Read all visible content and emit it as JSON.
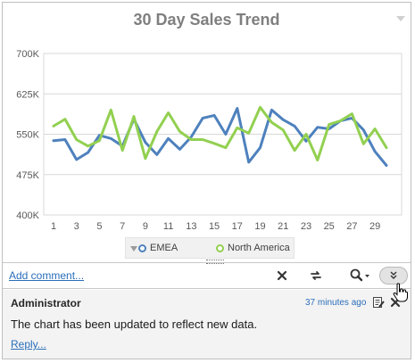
{
  "chart_data": {
    "type": "line",
    "title": "30 Day Sales Trend",
    "x": [
      1,
      2,
      3,
      4,
      5,
      6,
      7,
      8,
      9,
      10,
      11,
      12,
      13,
      14,
      15,
      16,
      17,
      18,
      19,
      20,
      21,
      22,
      23,
      24,
      25,
      26,
      27,
      28,
      29,
      30
    ],
    "x_tick_labels": [
      "1",
      "3",
      "5",
      "7",
      "9",
      "11",
      "13",
      "15",
      "17",
      "19",
      "21",
      "23",
      "25",
      "27",
      "29"
    ],
    "y_tick_labels": [
      "700K",
      "625K",
      "550K",
      "475K",
      "400K"
    ],
    "ylim": [
      400000,
      700000
    ],
    "grid": true,
    "legend_position": "bottom",
    "series": [
      {
        "name": "EMEA",
        "color": "#4e81bd",
        "values": [
          538000,
          540000,
          503000,
          516000,
          548000,
          542000,
          528000,
          578000,
          535000,
          512000,
          542000,
          522000,
          545000,
          580000,
          585000,
          550000,
          598000,
          498000,
          525000,
          595000,
          577000,
          565000,
          537000,
          563000,
          560000,
          575000,
          580000,
          558000,
          518000,
          492000
        ]
      },
      {
        "name": "North America",
        "color": "#92d050",
        "values": [
          565000,
          578000,
          540000,
          528000,
          538000,
          595000,
          520000,
          583000,
          505000,
          555000,
          590000,
          555000,
          540000,
          540000,
          533000,
          525000,
          562000,
          552000,
          600000,
          572000,
          558000,
          520000,
          550000,
          502000,
          568000,
          575000,
          588000,
          532000,
          560000,
          525000
        ]
      }
    ]
  },
  "toolbar": {
    "add_comment_label": "Add comment...",
    "close_icon": "close-icon",
    "refresh_icon": "refresh-icon",
    "search_icon": "magnifier-icon",
    "expand_icon": "double-chevron-down-icon"
  },
  "comment": {
    "author": "Administrator",
    "time": "37 minutes ago",
    "message": "The chart has been updated to reflect new data.",
    "reply_label": "Reply..."
  },
  "colors": {
    "link": "#2a6ebb",
    "title": "#7f7f7f",
    "emea": "#4e81bd",
    "north_america": "#92d050"
  }
}
